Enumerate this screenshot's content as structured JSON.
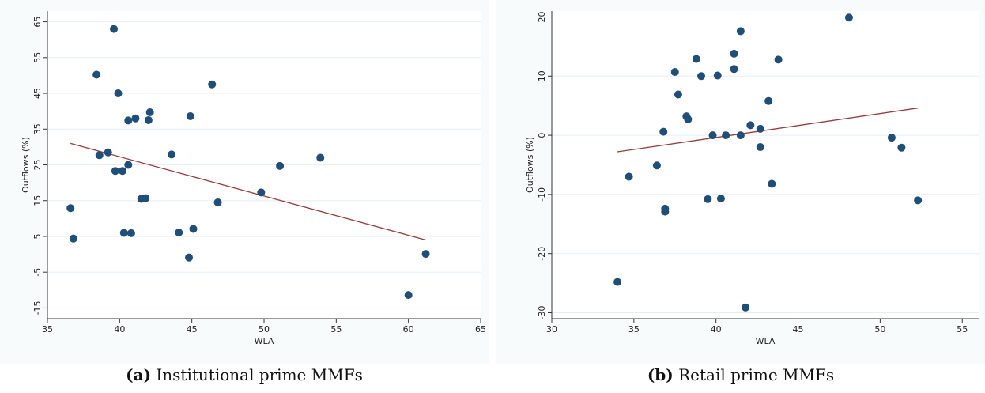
{
  "colors": {
    "point": "#1f4e79",
    "fit_line": "#9a3b3b",
    "grid": "#e6eef3",
    "axis": "#333333",
    "plot_bg": "#ffffff",
    "outer_bg": "#f8fbfc"
  },
  "panels": [
    {
      "caption_prefix": "(a)",
      "caption_text": "Institutional prime MMFs"
    },
    {
      "caption_prefix": "(b)",
      "caption_text": "Retail prime MMFs"
    }
  ],
  "chart_data": [
    {
      "type": "scatter",
      "xlabel": "WLA",
      "ylabel": "Outflows (%)",
      "xlim": [
        35,
        65
      ],
      "ylim": [
        -18,
        68
      ],
      "xticks": [
        35,
        40,
        45,
        50,
        55,
        60,
        65
      ],
      "yticks": [
        -15,
        -5,
        5,
        15,
        25,
        35,
        45,
        55,
        65
      ],
      "grid": true,
      "points": [
        {
          "x": 39.6,
          "y": 63.0
        },
        {
          "x": 38.4,
          "y": 50.2
        },
        {
          "x": 46.4,
          "y": 47.5
        },
        {
          "x": 39.9,
          "y": 45.0
        },
        {
          "x": 42.1,
          "y": 39.7
        },
        {
          "x": 44.9,
          "y": 38.6
        },
        {
          "x": 41.1,
          "y": 38.0
        },
        {
          "x": 40.6,
          "y": 37.4
        },
        {
          "x": 42.0,
          "y": 37.5
        },
        {
          "x": 39.2,
          "y": 28.5
        },
        {
          "x": 38.6,
          "y": 27.7
        },
        {
          "x": 43.6,
          "y": 27.9
        },
        {
          "x": 53.9,
          "y": 27.0
        },
        {
          "x": 40.6,
          "y": 25.0
        },
        {
          "x": 51.1,
          "y": 24.7
        },
        {
          "x": 39.7,
          "y": 23.3
        },
        {
          "x": 40.2,
          "y": 23.3
        },
        {
          "x": 49.8,
          "y": 17.3
        },
        {
          "x": 41.8,
          "y": 15.7
        },
        {
          "x": 41.5,
          "y": 15.5
        },
        {
          "x": 46.8,
          "y": 14.5
        },
        {
          "x": 36.6,
          "y": 12.9
        },
        {
          "x": 45.1,
          "y": 7.1
        },
        {
          "x": 44.1,
          "y": 6.1
        },
        {
          "x": 40.3,
          "y": 6.0
        },
        {
          "x": 40.8,
          "y": 5.9
        },
        {
          "x": 36.8,
          "y": 4.4
        },
        {
          "x": 61.2,
          "y": 0.1
        },
        {
          "x": 44.8,
          "y": -0.9
        },
        {
          "x": 60.0,
          "y": -11.4
        }
      ],
      "fit_line": {
        "x": [
          36.6,
          61.2
        ],
        "y": [
          31.0,
          4.0
        ]
      }
    },
    {
      "type": "scatter",
      "xlabel": "WLA",
      "ylabel": "Outflows (%)",
      "xlim": [
        30,
        56
      ],
      "ylim": [
        -31,
        21
      ],
      "xticks": [
        30,
        35,
        40,
        45,
        50,
        55
      ],
      "yticks": [
        -30,
        -20,
        -10,
        0,
        10,
        20
      ],
      "grid": true,
      "points": [
        {
          "x": 48.1,
          "y": 19.9
        },
        {
          "x": 41.5,
          "y": 17.6
        },
        {
          "x": 41.1,
          "y": 13.8
        },
        {
          "x": 38.8,
          "y": 12.9
        },
        {
          "x": 43.8,
          "y": 12.8
        },
        {
          "x": 41.1,
          "y": 11.2
        },
        {
          "x": 37.5,
          "y": 10.7
        },
        {
          "x": 40.1,
          "y": 10.1
        },
        {
          "x": 39.1,
          "y": 10.0
        },
        {
          "x": 37.7,
          "y": 6.9
        },
        {
          "x": 43.2,
          "y": 5.8
        },
        {
          "x": 38.2,
          "y": 3.2
        },
        {
          "x": 38.3,
          "y": 2.7
        },
        {
          "x": 42.1,
          "y": 1.7
        },
        {
          "x": 42.7,
          "y": 1.1
        },
        {
          "x": 36.8,
          "y": 0.6
        },
        {
          "x": 39.8,
          "y": 0.0
        },
        {
          "x": 40.6,
          "y": 0.0
        },
        {
          "x": 41.5,
          "y": 0.0
        },
        {
          "x": 50.7,
          "y": -0.4
        },
        {
          "x": 42.7,
          "y": -2.0
        },
        {
          "x": 51.3,
          "y": -2.1
        },
        {
          "x": 36.4,
          "y": -5.1
        },
        {
          "x": 34.7,
          "y": -7.0
        },
        {
          "x": 43.4,
          "y": -8.2
        },
        {
          "x": 39.5,
          "y": -10.8
        },
        {
          "x": 40.3,
          "y": -10.7
        },
        {
          "x": 52.3,
          "y": -11.0
        },
        {
          "x": 36.9,
          "y": -12.4
        },
        {
          "x": 36.9,
          "y": -12.9
        },
        {
          "x": 34.0,
          "y": -24.8
        },
        {
          "x": 41.8,
          "y": -29.1
        }
      ],
      "fit_line": {
        "x": [
          34.0,
          52.3
        ],
        "y": [
          -2.8,
          4.6
        ]
      }
    }
  ]
}
